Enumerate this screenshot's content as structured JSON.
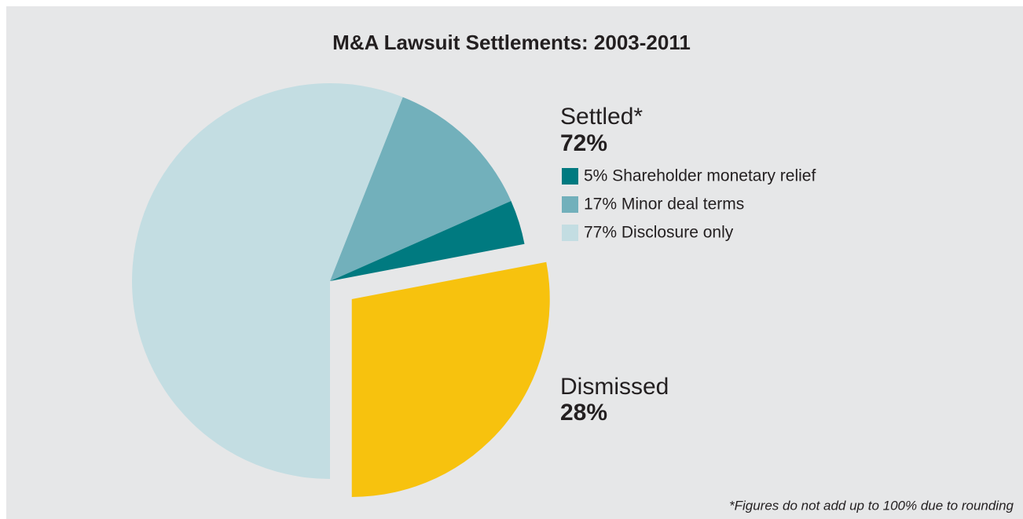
{
  "chart_data": {
    "type": "pie",
    "title": "M&A Lawsuit Settlements: 2003-2011",
    "slices": [
      {
        "name": "Dismissed",
        "value": 28,
        "value_label": "28%",
        "color": "#f7c20e"
      },
      {
        "name": "Settled*",
        "value": 72,
        "value_label": "72%",
        "breakdown": [
          {
            "label": "5% Shareholder monetary relief",
            "value": 5,
            "color": "#007a80"
          },
          {
            "label": "17% Minor deal terms",
            "value": 17,
            "color": "#72b0bb"
          },
          {
            "label": "77% Disclosure only",
            "value": 77,
            "color": "#c3dde2"
          }
        ]
      }
    ],
    "footnote": "*Figures do not add up to 100% due to rounding"
  }
}
